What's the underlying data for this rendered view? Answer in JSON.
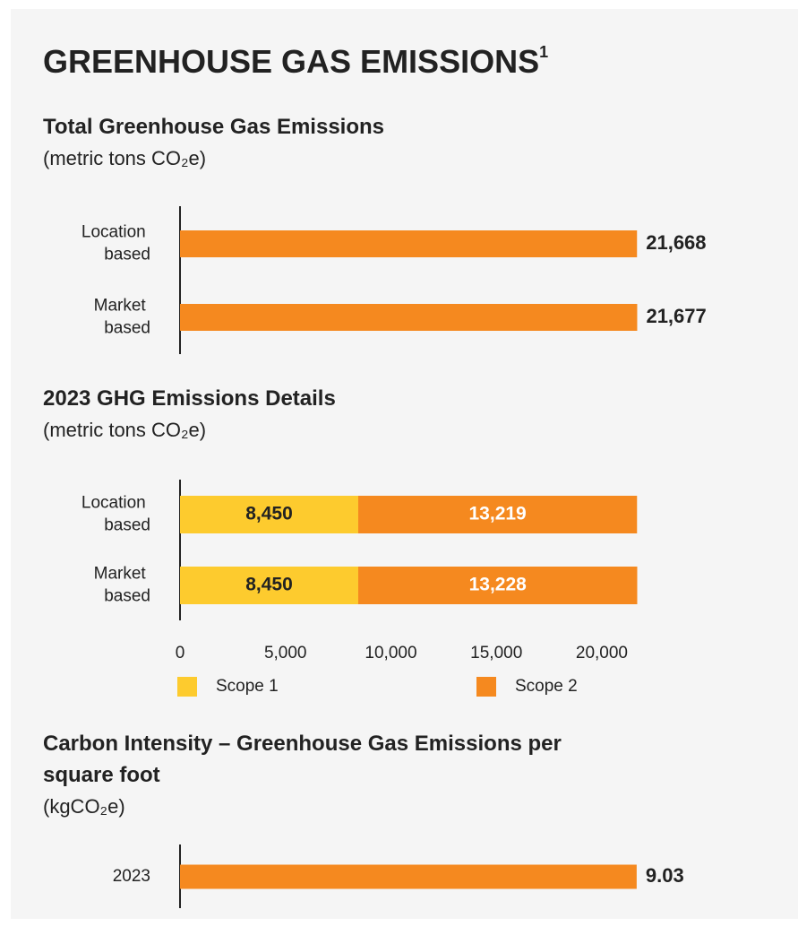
{
  "header": {
    "title": "GREENHOUSE GAS EMISSIONS",
    "footnote": "1"
  },
  "chart_data": [
    {
      "type": "bar",
      "orientation": "horizontal",
      "title": "Total Greenhouse Gas Emissions",
      "subtitle": "(metric tons CO₂e)",
      "categories": [
        "Location based",
        "Market based"
      ],
      "values": [
        21668,
        21677
      ],
      "value_labels": [
        "21,668",
        "21,677"
      ],
      "color": "#f5891f",
      "xlim": [
        0,
        21700
      ]
    },
    {
      "type": "stacked_bar",
      "orientation": "horizontal",
      "title": "2023 GHG Emissions Details",
      "subtitle": "(metric tons CO₂e)",
      "categories": [
        "Location based",
        "Market based"
      ],
      "series": [
        {
          "name": "Scope 1",
          "color": "#fdcb2e",
          "values": [
            8450,
            8450
          ],
          "value_labels": [
            "8,450",
            "8,450"
          ]
        },
        {
          "name": "Scope 2",
          "color": "#f5891f",
          "values": [
            13219,
            13228
          ],
          "value_labels": [
            "13,219",
            "13,228"
          ]
        }
      ],
      "xlim": [
        0,
        21700
      ],
      "xticks": [
        0,
        {
          "value": 5000,
          "label": "5,000"
        },
        {
          "value": 10000,
          "label": "10,000"
        },
        {
          "value": 15000,
          "label": "15,000"
        },
        {
          "value": 20000,
          "label": "20,000"
        }
      ],
      "legend": "bottom"
    },
    {
      "type": "bar",
      "orientation": "horizontal",
      "title": "Carbon Intensity – Greenhouse Gas Emissions per square foot",
      "subtitle": "(kgCO₂e)",
      "categories": [
        "2023"
      ],
      "values": [
        9.03
      ],
      "color": "#f5891f",
      "xlim": [
        0,
        9.05
      ]
    }
  ]
}
